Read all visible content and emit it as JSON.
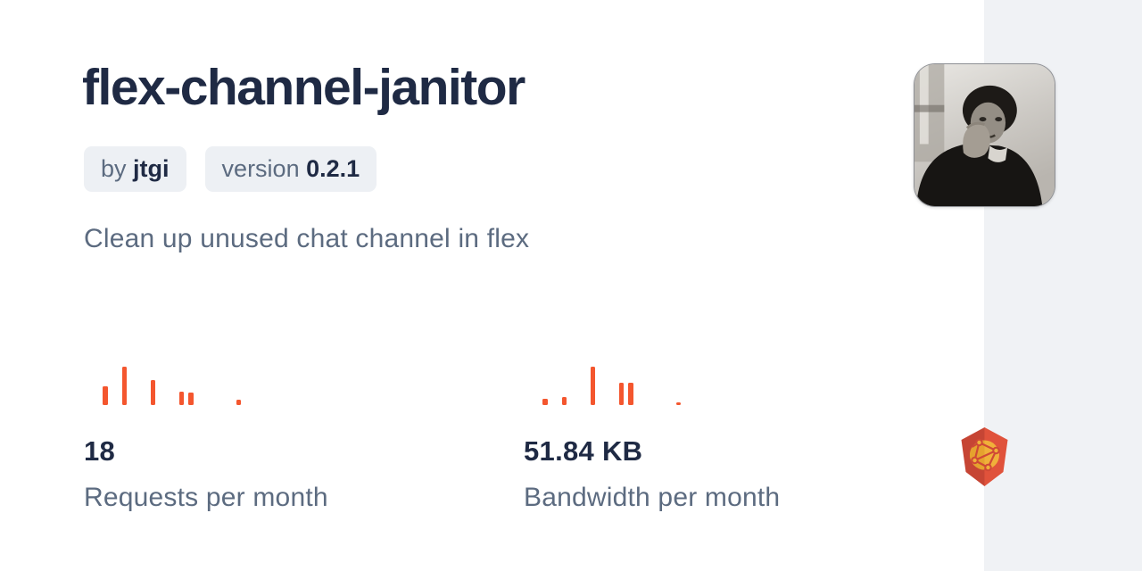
{
  "card": {
    "title": "flex-channel-janitor",
    "author_badge": {
      "prefix": "by",
      "name": "jtgi"
    },
    "version_badge": {
      "prefix": "version",
      "value": "0.2.1"
    },
    "description": "Clean up unused chat channel in flex",
    "stats": [
      {
        "value": "18",
        "label": "Requests per month"
      },
      {
        "value": "51.84 KB",
        "label": "Bandwidth per month"
      }
    ]
  },
  "chart_data": [
    {
      "type": "bar",
      "name": "requests-sparkline",
      "title": "Requests per month sparkline",
      "values": [
        0,
        0,
        21,
        0,
        43,
        0,
        0,
        28,
        0,
        0,
        15,
        14,
        0,
        0,
        0,
        0,
        6
      ],
      "ylim": [
        0,
        43
      ],
      "color": "#f4562e",
      "grid": false,
      "axes_hidden": true
    },
    {
      "type": "bar",
      "name": "bandwidth-sparkline",
      "title": "Bandwidth per month sparkline",
      "values": [
        0,
        0,
        7,
        0,
        9,
        0,
        0,
        43,
        0,
        0,
        25,
        25,
        0,
        0,
        0,
        0,
        3
      ],
      "ylim": [
        0,
        43
      ],
      "color": "#f4562e",
      "grid": false,
      "axes_hidden": true
    }
  ],
  "colors": {
    "heading": "#1f2a44",
    "muted_text": "#5c6b80",
    "badge_background": "#edf0f4",
    "strip_background": "#f0f2f5",
    "accent_bars": "#f4562e",
    "logo_red_dark": "#c64534",
    "logo_red_light": "#e0523b",
    "logo_gold": "#f0b03a"
  },
  "images": {
    "avatar_alt": "author-photo-grayscale",
    "logo_alt": "jsdelivr-logo"
  }
}
